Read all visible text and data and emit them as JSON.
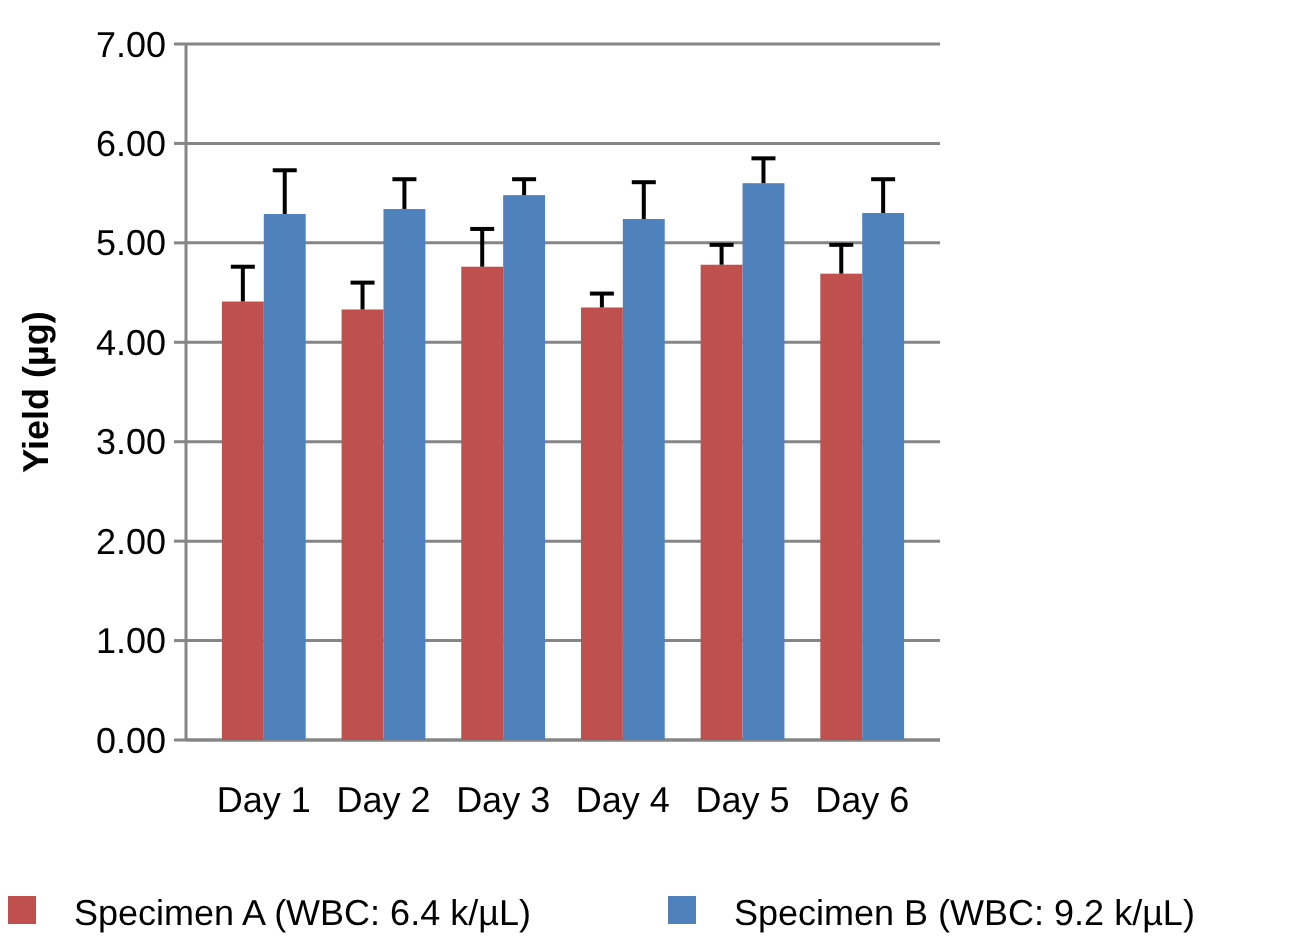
{
  "chart_data": {
    "type": "bar",
    "ylabel": "Yield (µg)",
    "categories": [
      "Day 1",
      "Day 2",
      "Day 3",
      "Day 4",
      "Day 5",
      "Day 6"
    ],
    "series": [
      {
        "name": "Specimen A (WBC: 6.4 k/µL)",
        "color": "#c0504d",
        "values": [
          4.41,
          4.33,
          4.76,
          4.35,
          4.78,
          4.69
        ],
        "errors": [
          [
            4.41,
            4.76
          ],
          [
            4.33,
            4.6
          ],
          [
            4.76,
            5.14
          ],
          [
            4.35,
            4.49
          ],
          [
            4.78,
            4.98
          ],
          [
            4.69,
            4.98
          ]
        ]
      },
      {
        "name": "Specimen B (WBC: 9.2 k/µL)",
        "color": "#4f81bd",
        "values": [
          5.29,
          5.34,
          5.48,
          5.24,
          5.6,
          5.3
        ],
        "errors": [
          [
            5.29,
            5.73
          ],
          [
            5.34,
            5.64
          ],
          [
            5.48,
            5.64
          ],
          [
            5.24,
            5.61
          ],
          [
            5.6,
            5.85
          ],
          [
            5.3,
            5.64
          ]
        ]
      }
    ],
    "ylim": [
      0,
      7
    ],
    "yticks": [
      {
        "value": 0,
        "label": "0.00"
      },
      {
        "value": 1,
        "label": "1.00"
      },
      {
        "value": 2,
        "label": "2.00"
      },
      {
        "value": 3,
        "label": "3.00"
      },
      {
        "value": 4,
        "label": "4.00"
      },
      {
        "value": 5,
        "label": "5.00"
      },
      {
        "value": 6,
        "label": "6.00"
      },
      {
        "value": 7,
        "label": "7.00"
      }
    ],
    "grid": "y",
    "legend": "bottom"
  }
}
